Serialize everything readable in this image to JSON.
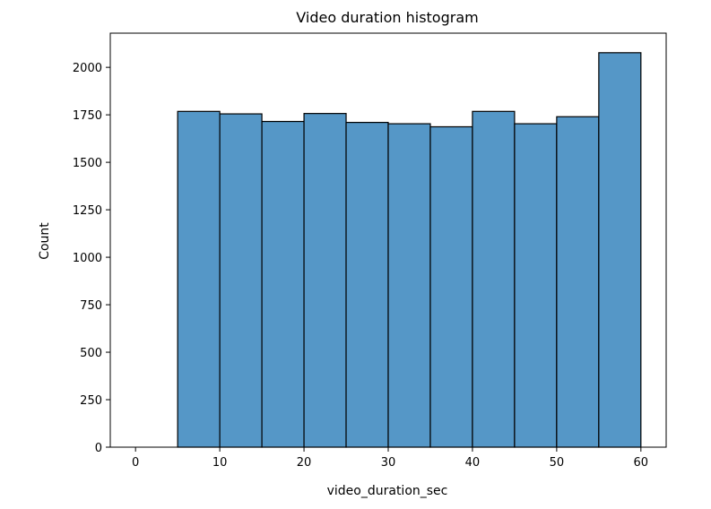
{
  "chart_data": {
    "type": "bar",
    "title": "Video duration histogram",
    "xlabel": "video_duration_sec",
    "ylabel": "Count",
    "xlim": [
      -3,
      63
    ],
    "ylim": [
      0,
      2180
    ],
    "xticks": [
      0,
      10,
      20,
      30,
      40,
      50,
      60
    ],
    "yticks": [
      0,
      250,
      500,
      750,
      1000,
      1250,
      1500,
      1750,
      2000
    ],
    "grid": false,
    "bar_color": "#5597c7",
    "edge_color": "#000000",
    "bins": [
      {
        "x0": 0,
        "x1": 5,
        "count": 0
      },
      {
        "x0": 5,
        "x1": 10,
        "count": 1768
      },
      {
        "x0": 10,
        "x1": 15,
        "count": 1755
      },
      {
        "x0": 15,
        "x1": 20,
        "count": 1715
      },
      {
        "x0": 20,
        "x1": 25,
        "count": 1757
      },
      {
        "x0": 25,
        "x1": 30,
        "count": 1710
      },
      {
        "x0": 30,
        "x1": 35,
        "count": 1703
      },
      {
        "x0": 35,
        "x1": 40,
        "count": 1687
      },
      {
        "x0": 40,
        "x1": 45,
        "count": 1768
      },
      {
        "x0": 45,
        "x1": 50,
        "count": 1703
      },
      {
        "x0": 50,
        "x1": 55,
        "count": 1740
      },
      {
        "x0": 55,
        "x1": 60,
        "count": 2077
      }
    ]
  }
}
